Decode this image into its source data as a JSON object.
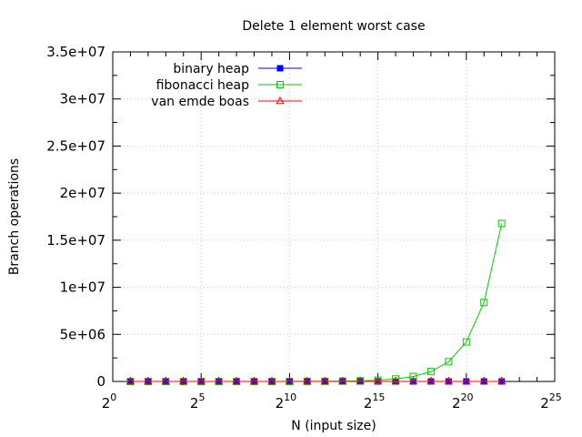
{
  "chart_data": {
    "type": "line",
    "title": "Delete 1 element worst case",
    "xlabel": "N (input size)",
    "ylabel": "Branch operations",
    "x_scale": "log2",
    "x_ticks": [
      {
        "base": "2",
        "exp": "0"
      },
      {
        "base": "2",
        "exp": "5"
      },
      {
        "base": "2",
        "exp": "10"
      },
      {
        "base": "2",
        "exp": "15"
      },
      {
        "base": "2",
        "exp": "20"
      },
      {
        "base": "2",
        "exp": "25"
      }
    ],
    "y_ticks": [
      "0",
      "5e+06",
      "1e+07",
      "1.5e+07",
      "2e+07",
      "2.5e+07",
      "3e+07",
      "3.5e+07"
    ],
    "xlim": [
      1,
      33554432
    ],
    "ylim": [
      0,
      35000000
    ],
    "grid": true,
    "legend_position": "top-left",
    "x": [
      2,
      4,
      8,
      16,
      32,
      64,
      128,
      256,
      512,
      1024,
      2048,
      4096,
      8192,
      16384,
      32768,
      65536,
      131072,
      262144,
      524288,
      1048576,
      2097152,
      4194304
    ],
    "series": [
      {
        "name": "binary heap",
        "color": "#0000ff",
        "marker": "filled-square",
        "values": [
          3,
          7,
          12,
          18,
          25,
          33,
          42,
          52,
          63,
          75,
          88,
          102,
          117,
          133,
          150,
          168,
          187,
          207,
          228,
          250,
          273,
          297
        ]
      },
      {
        "name": "fibonacci heap",
        "color": "#00cc00",
        "marker": "open-square",
        "values": [
          8,
          16,
          32,
          64,
          128,
          256,
          512,
          1024,
          2048,
          4096,
          8192,
          16384,
          32768,
          65536,
          131072,
          262144,
          524288,
          1048576,
          2097152,
          4194304,
          8388608,
          16777216
        ]
      },
      {
        "name": "van emde boas",
        "color": "#ff0000",
        "marker": "open-triangle",
        "values": [
          5,
          7,
          9,
          11,
          13,
          15,
          17,
          19,
          21,
          23,
          25,
          27,
          29,
          31,
          33,
          35,
          37,
          39,
          41,
          43,
          45,
          47
        ]
      }
    ]
  }
}
